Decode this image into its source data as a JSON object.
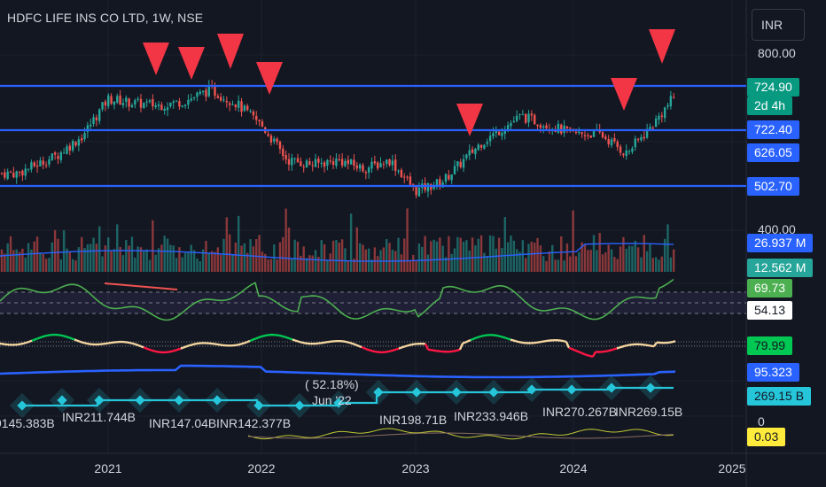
{
  "header": {
    "title": "HDFC LIFE INS CO LTD, 1W, NSE",
    "currency_button": "INR"
  },
  "price_axis": {
    "tick_800": "800.00",
    "tick_400": "400.00",
    "tick_0": "0"
  },
  "tags": {
    "last_price": "724.90",
    "countdown": "2d 4h",
    "level_upper": "722.40",
    "level_mid": "626.05",
    "level_lower": "502.70",
    "volume_avg": "26.937 M",
    "volume": "12.562 M",
    "rsi": "69.73",
    "rsi_mid": "54.13",
    "osc": "79.99",
    "blue_line": "95.323",
    "mcap": "269.15 B",
    "bottom_osc": "0.03"
  },
  "annotations": {
    "pct": "( 52.18%)",
    "date": "Jun '22",
    "cap_labels": [
      "INR211.744B",
      "INR147.04B",
      "INR142.377B",
      "INR198.71B",
      "INR233.946B",
      "INR270.267B",
      "INR269.15B"
    ],
    "cap_left_fragment": "9145.383B"
  },
  "x_axis": [
    "2021",
    "2022",
    "2023",
    "2024",
    "2025"
  ],
  "colors": {
    "up": "#26a69a",
    "down": "#ef5350",
    "level": "#2962ff",
    "rsi": "#4caf50",
    "marker": "#f23645",
    "mcap": "#26c6da"
  },
  "chart_data": {
    "type": "candlestick",
    "title": "HDFC LIFE INS CO LTD, 1W, NSE",
    "price_levels": [
      722.4,
      626.05,
      502.7
    ],
    "price_axis_ticks": [
      800,
      400,
      0
    ],
    "last_price": 724.9,
    "x_ticks": [
      "2021",
      "2022",
      "2023",
      "2024",
      "2025"
    ],
    "down_markers": [
      "2021-05",
      "2021-08",
      "2021-11",
      "2022-01",
      "2023-04",
      "2024-04",
      "2024-07"
    ],
    "close_path": [
      [
        "2020-06",
        530
      ],
      [
        "2020-09",
        570
      ],
      [
        "2020-11",
        615
      ],
      [
        "2021-01",
        700
      ],
      [
        "2021-03",
        690
      ],
      [
        "2021-05",
        685
      ],
      [
        "2021-07",
        695
      ],
      [
        "2021-09",
        720
      ],
      [
        "2021-11",
        690
      ],
      [
        "2022-01",
        640
      ],
      [
        "2022-03",
        560
      ],
      [
        "2022-05",
        550
      ],
      [
        "2022-07",
        560
      ],
      [
        "2022-09",
        540
      ],
      [
        "2022-11",
        560
      ],
      [
        "2023-01",
        490
      ],
      [
        "2023-03",
        510
      ],
      [
        "2023-06",
        600
      ],
      [
        "2023-09",
        660
      ],
      [
        "2023-11",
        640
      ],
      [
        "2024-01",
        620
      ],
      [
        "2024-03",
        620
      ],
      [
        "2024-05",
        575
      ],
      [
        "2024-07",
        640
      ],
      [
        "2024-09",
        720
      ]
    ],
    "indicators": {
      "volume": [
        26.937,
        12.562
      ],
      "rsi": 69.73,
      "rsi_mid": 54.13,
      "oscillator": 79.99,
      "blue_line": 95.323,
      "market_cap_inr": "269.15 B",
      "bottom_oscillator": 0.03
    }
  }
}
